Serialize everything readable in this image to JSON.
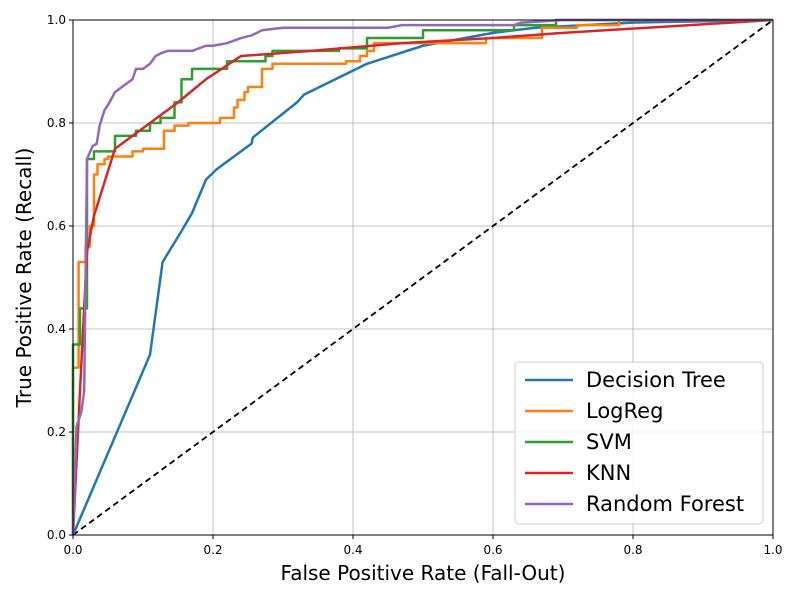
{
  "chart_data": {
    "type": "line",
    "xlabel": "False Positive Rate (Fall-Out)",
    "ylabel": "True Positive Rate (Recall)",
    "xlim": [
      0,
      1
    ],
    "ylim": [
      0,
      1
    ],
    "grid": true,
    "legend_position": "bottom-right",
    "x_ticks": [
      "0.0",
      "0.2",
      "0.4",
      "0.6",
      "0.8",
      "1.0"
    ],
    "y_ticks": [
      "0.0",
      "0.2",
      "0.4",
      "0.6",
      "0.8",
      "1.0"
    ],
    "reference_line": {
      "style": "dashed",
      "color": "#000000",
      "x": [
        0,
        1
      ],
      "y": [
        0,
        1
      ]
    },
    "series": [
      {
        "name": "Decision Tree",
        "color": "#1f77b4",
        "x": [
          0,
          0.11,
          0.128,
          0.155,
          0.17,
          0.19,
          0.205,
          0.255,
          0.257,
          0.32,
          0.33,
          0.42,
          0.5,
          0.6,
          0.66,
          0.8,
          1.0
        ],
        "y": [
          0,
          0.35,
          0.53,
          0.59,
          0.625,
          0.69,
          0.71,
          0.76,
          0.772,
          0.84,
          0.855,
          0.915,
          0.95,
          0.975,
          0.985,
          0.995,
          1.0
        ]
      },
      {
        "name": "LogReg",
        "color": "#ff7f0e",
        "x": [
          0,
          0,
          0.008,
          0.008,
          0.018,
          0.018,
          0.024,
          0.024,
          0.03,
          0.03,
          0.035,
          0.035,
          0.045,
          0.045,
          0.05,
          0.05,
          0.085,
          0.085,
          0.1,
          0.1,
          0.13,
          0.13,
          0.145,
          0.145,
          0.165,
          0.165,
          0.21,
          0.21,
          0.23,
          0.23,
          0.235,
          0.235,
          0.245,
          0.245,
          0.25,
          0.25,
          0.27,
          0.27,
          0.285,
          0.285,
          0.39,
          0.39,
          0.41,
          0.41,
          0.42,
          0.42,
          0.43,
          0.43,
          0.59,
          0.59,
          0.67,
          0.67,
          0.72,
          0.72,
          0.78,
          0.78,
          1.0
        ],
        "y": [
          0,
          0.325,
          0.325,
          0.53,
          0.53,
          0.56,
          0.56,
          0.6,
          0.6,
          0.7,
          0.7,
          0.72,
          0.72,
          0.73,
          0.73,
          0.735,
          0.735,
          0.745,
          0.745,
          0.75,
          0.75,
          0.785,
          0.785,
          0.795,
          0.795,
          0.8,
          0.8,
          0.81,
          0.81,
          0.83,
          0.83,
          0.845,
          0.845,
          0.86,
          0.86,
          0.87,
          0.87,
          0.905,
          0.905,
          0.915,
          0.915,
          0.92,
          0.92,
          0.93,
          0.93,
          0.94,
          0.94,
          0.955,
          0.955,
          0.965,
          0.965,
          0.985,
          0.985,
          0.99,
          0.99,
          1.0,
          1.0
        ]
      },
      {
        "name": "SVM",
        "color": "#2ca02c",
        "x": [
          0,
          0,
          0.01,
          0.01,
          0.02,
          0.02,
          0.03,
          0.03,
          0.06,
          0.06,
          0.09,
          0.09,
          0.11,
          0.11,
          0.125,
          0.125,
          0.145,
          0.145,
          0.155,
          0.155,
          0.17,
          0.17,
          0.22,
          0.22,
          0.275,
          0.275,
          0.285,
          0.285,
          0.38,
          0.38,
          0.42,
          0.42,
          0.5,
          0.5,
          0.63,
          0.63,
          0.69,
          0.69,
          1.0
        ],
        "y": [
          0,
          0.37,
          0.37,
          0.44,
          0.44,
          0.73,
          0.73,
          0.745,
          0.745,
          0.775,
          0.775,
          0.785,
          0.785,
          0.8,
          0.8,
          0.81,
          0.81,
          0.84,
          0.84,
          0.885,
          0.885,
          0.905,
          0.905,
          0.92,
          0.92,
          0.93,
          0.93,
          0.94,
          0.94,
          0.945,
          0.945,
          0.965,
          0.965,
          0.98,
          0.98,
          0.99,
          0.99,
          1.0,
          1.0
        ]
      },
      {
        "name": "KNN",
        "color": "#d62728",
        "x": [
          0,
          0.01,
          0.02,
          0.03,
          0.06,
          0.1,
          0.15,
          0.19,
          0.24,
          0.34,
          0.47,
          0.6,
          0.7,
          1.0
        ],
        "y": [
          0,
          0.28,
          0.55,
          0.62,
          0.75,
          0.79,
          0.84,
          0.885,
          0.93,
          0.94,
          0.955,
          0.965,
          0.975,
          1.0
        ]
      },
      {
        "name": "Random Forest",
        "color": "#9467bd",
        "x": [
          0,
          0.005,
          0.012,
          0.016,
          0.02,
          0.028,
          0.034,
          0.038,
          0.045,
          0.05,
          0.06,
          0.065,
          0.075,
          0.08,
          0.085,
          0.09,
          0.1,
          0.11,
          0.118,
          0.125,
          0.135,
          0.17,
          0.19,
          0.2,
          0.22,
          0.24,
          0.255,
          0.27,
          0.3,
          0.45,
          0.47,
          0.63,
          0.64,
          0.7,
          1.0
        ],
        "y": [
          0,
          0.21,
          0.24,
          0.28,
          0.73,
          0.755,
          0.76,
          0.795,
          0.825,
          0.835,
          0.86,
          0.865,
          0.875,
          0.88,
          0.885,
          0.905,
          0.905,
          0.915,
          0.93,
          0.935,
          0.94,
          0.94,
          0.95,
          0.95,
          0.955,
          0.965,
          0.97,
          0.98,
          0.985,
          0.985,
          0.99,
          0.99,
          0.995,
          1.0,
          1.0
        ]
      }
    ]
  }
}
